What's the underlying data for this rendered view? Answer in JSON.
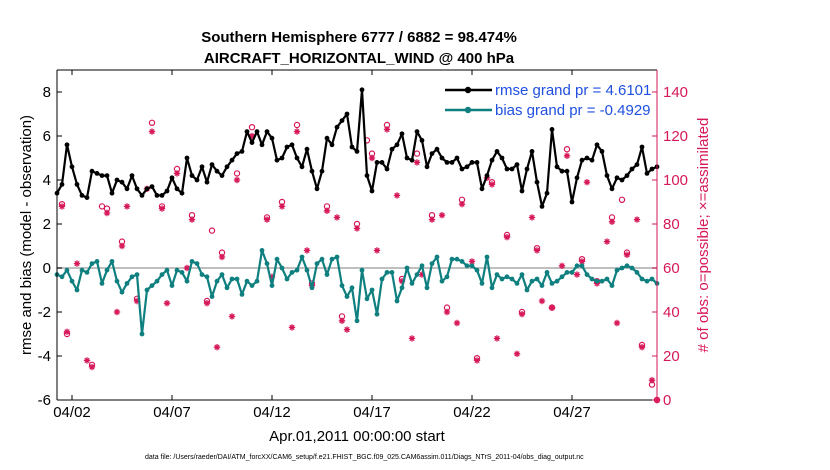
{
  "chart_data": {
    "type": "line",
    "title": "Southern Hemisphere 6777 / 6882 = 98.474%",
    "subtitle": "AIRCRAFT_HORIZONTAL_WIND @ 400 hPa",
    "xlabel": "Apr.01,2011 00:00:00 start",
    "ylabel_left": "rmse and bias (model - observation)",
    "ylabel_right": "# of obs: o=possible; ×=assimilated",
    "footer": "data file: /Users/raeder/DAI/ATM_forcXX/CAM6_setup/f.e21.FHIST_BGC.f09_025.CAM6assim.011/Diags_NTrS_2011-04/obs_diag_output.nc",
    "xlim": [
      0.75,
      30.75
    ],
    "ylim_left": [
      -6,
      9
    ],
    "ylim_right": [
      0,
      150
    ],
    "xticks": [
      1.5,
      6.5,
      11.5,
      16.5,
      21.5,
      26.5
    ],
    "xtick_labels": [
      "04/02",
      "04/07",
      "04/12",
      "04/17",
      "04/22",
      "04/27"
    ],
    "yticks_left": [
      -6,
      -4,
      -2,
      0,
      2,
      4,
      6,
      8
    ],
    "yticks_right": [
      0,
      20,
      40,
      60,
      80,
      100,
      120,
      140
    ],
    "colors": {
      "rmse": "#000000",
      "bias": "#0f7f7f",
      "obs": "#d6185a",
      "legend_text": "#1f4fe0",
      "zero_line": "#bfbfbf"
    },
    "legend": [
      {
        "name": "rmse grand pr = 4.6101"
      },
      {
        "name": "bias grand pr = -0.4929"
      }
    ],
    "series": [
      {
        "name": "rmse",
        "x": [
          0.75,
          1.0,
          1.25,
          1.5,
          1.75,
          2.0,
          2.25,
          2.5,
          2.75,
          3.0,
          3.25,
          3.5,
          3.75,
          4.0,
          4.25,
          4.5,
          4.75,
          5.0,
          5.25,
          5.5,
          5.75,
          6.0,
          6.25,
          6.5,
          6.75,
          7.0,
          7.25,
          7.5,
          7.75,
          8.0,
          8.25,
          8.5,
          8.75,
          9.0,
          9.25,
          9.5,
          9.75,
          10.0,
          10.25,
          10.5,
          10.75,
          11.0,
          11.25,
          11.5,
          11.75,
          12.0,
          12.25,
          12.5,
          12.75,
          13.0,
          13.25,
          13.5,
          13.75,
          14.0,
          14.25,
          14.5,
          14.75,
          15.0,
          15.25,
          15.5,
          15.75,
          16.0,
          16.25,
          16.5,
          16.75,
          17.0,
          17.25,
          17.5,
          17.75,
          18.0,
          18.25,
          18.5,
          18.75,
          19.0,
          19.25,
          19.5,
          19.75,
          20.0,
          20.25,
          20.5,
          20.75,
          21.0,
          21.25,
          21.5,
          21.75,
          22.0,
          22.25,
          22.5,
          22.75,
          23.0,
          23.25,
          23.5,
          23.75,
          24.0,
          24.25,
          24.5,
          24.75,
          25.0,
          25.25,
          25.5,
          25.75,
          26.0,
          26.25,
          26.5,
          26.75,
          27.0,
          27.25,
          27.5,
          27.75,
          28.0,
          28.25,
          28.5,
          28.75,
          29.0,
          29.25,
          29.5,
          29.75,
          30.0,
          30.25,
          30.5,
          30.75
        ],
        "values": [
          3.4,
          3.8,
          5.6,
          4.6,
          3.8,
          3.3,
          3.2,
          4.4,
          4.3,
          4.2,
          4.2,
          3.4,
          4.0,
          3.9,
          3.6,
          4.2,
          3.6,
          3.3,
          3.6,
          3.7,
          3.3,
          3.3,
          3.5,
          4.1,
          3.6,
          3.4,
          5.0,
          4.2,
          4.0,
          4.6,
          3.9,
          4.7,
          4.4,
          4.2,
          4.6,
          4.9,
          5.2,
          5.3,
          6.2,
          5.7,
          6.2,
          5.6,
          6.2,
          5.9,
          4.9,
          5.0,
          5.5,
          5.6,
          5.0,
          4.6,
          5.4,
          4.4,
          3.6,
          4.4,
          5.9,
          5.6,
          6.4,
          6.7,
          7.0,
          5.5,
          5.3,
          8.1,
          4.2,
          3.5,
          4.8,
          4.8,
          4.5,
          5.4,
          5.6,
          6.1,
          5.0,
          4.9,
          6.2,
          5.8,
          4.6,
          5.2,
          5.4,
          5.0,
          4.8,
          4.8,
          5.0,
          4.5,
          4.6,
          4.8,
          4.8,
          3.6,
          4.2,
          4.9,
          5.3,
          5.0,
          4.5,
          4.5,
          4.7,
          3.5,
          4.5,
          5.3,
          3.9,
          2.8,
          3.4,
          6.3,
          4.6,
          4.4,
          4.4,
          3.0,
          4.1,
          4.9,
          5.0,
          4.9,
          5.6,
          5.3,
          4.2,
          3.6,
          4.1,
          4.0,
          4.2,
          4.5,
          4.7,
          5.5,
          4.3,
          4.5,
          4.6
        ]
      },
      {
        "name": "bias",
        "x": [
          0.75,
          1.0,
          1.25,
          1.5,
          1.75,
          2.0,
          2.25,
          2.5,
          2.75,
          3.0,
          3.25,
          3.5,
          3.75,
          4.0,
          4.25,
          4.5,
          4.75,
          5.0,
          5.25,
          5.5,
          5.75,
          6.0,
          6.25,
          6.5,
          6.75,
          7.0,
          7.25,
          7.5,
          7.75,
          8.0,
          8.25,
          8.5,
          8.75,
          9.0,
          9.25,
          9.5,
          9.75,
          10.0,
          10.25,
          10.5,
          10.75,
          11.0,
          11.25,
          11.5,
          11.75,
          12.0,
          12.25,
          12.5,
          12.75,
          13.0,
          13.25,
          13.5,
          13.75,
          14.0,
          14.25,
          14.5,
          14.75,
          15.0,
          15.25,
          15.5,
          15.75,
          16.0,
          16.25,
          16.5,
          16.75,
          17.0,
          17.25,
          17.5,
          17.75,
          18.0,
          18.25,
          18.5,
          18.75,
          19.0,
          19.25,
          19.5,
          19.75,
          20.0,
          20.25,
          20.5,
          20.75,
          21.0,
          21.25,
          21.5,
          21.75,
          22.0,
          22.25,
          22.5,
          22.75,
          23.0,
          23.25,
          23.5,
          23.75,
          24.0,
          24.25,
          24.5,
          24.75,
          25.0,
          25.25,
          25.5,
          25.75,
          26.0,
          26.25,
          26.5,
          26.75,
          27.0,
          27.25,
          27.5,
          27.75,
          28.0,
          28.25,
          28.5,
          28.75,
          29.0,
          29.25,
          29.5,
          29.75,
          30.0,
          30.25,
          30.5,
          30.75
        ],
        "values": [
          -0.3,
          -0.4,
          -0.1,
          -0.6,
          -1.0,
          -0.1,
          -0.2,
          0.2,
          0.3,
          -0.7,
          -0.1,
          0.3,
          -0.6,
          -1.1,
          -0.7,
          -0.4,
          -0.3,
          -3.0,
          -1.0,
          -0.8,
          -0.6,
          -0.3,
          -0.1,
          -0.8,
          -0.1,
          -0.2,
          -0.6,
          0.3,
          0.2,
          -0.3,
          -0.4,
          -1.3,
          -0.6,
          -0.3,
          -0.9,
          -0.5,
          -0.5,
          -1.2,
          -0.6,
          -0.8,
          -0.6,
          0.8,
          0.2,
          -0.8,
          0.4,
          0.0,
          -0.5,
          -0.2,
          -0.1,
          0.5,
          -0.1,
          -0.9,
          0.2,
          0.4,
          -0.3,
          0.4,
          0.5,
          -0.8,
          -1.3,
          -0.9,
          -2.4,
          -0.1,
          -1.4,
          -1.0,
          -2.1,
          -0.5,
          -0.2,
          -0.2,
          -1.5,
          -0.9,
          0.0,
          -0.7,
          -0.3,
          0.1,
          -0.9,
          0.2,
          0.5,
          -0.6,
          -0.4,
          0.4,
          0.4,
          0.3,
          0.1,
          0.1,
          -0.1,
          -0.7,
          0.5,
          -0.9,
          -0.3,
          -0.5,
          -0.4,
          -0.5,
          -0.7,
          -0.3,
          -1.0,
          -0.6,
          -0.5,
          -0.8,
          -0.2,
          -0.7,
          -0.6,
          -0.4,
          -0.2,
          -0.2,
          0.1,
          0.1,
          -0.3,
          -0.5,
          -0.6,
          -0.6,
          -0.5,
          -0.8,
          -0.1,
          0.0,
          0.1,
          0.0,
          -0.2,
          -0.5,
          -0.6,
          -0.5,
          -0.7
        ]
      },
      {
        "name": "obs possible",
        "x": [
          1.0,
          1.25,
          2.5,
          3.25,
          4.0,
          4.75,
          5.5,
          6.0,
          6.75,
          7.5,
          8.25,
          9.0,
          9.75,
          10.5,
          11.25,
          12.0,
          12.75,
          13.5,
          14.25,
          15.0,
          15.75,
          16.5,
          17.25,
          18.0,
          18.75,
          19.5,
          20.25,
          21.0,
          21.75,
          22.5,
          23.25,
          24.0,
          24.75,
          25.5,
          26.25,
          27.0,
          27.75,
          28.5,
          29.25,
          30.0,
          30.5,
          30.75,
          3.0,
          8.5,
          16.25,
          29.0
        ],
        "values": [
          89,
          30,
          16,
          87,
          72,
          46,
          126,
          88,
          105,
          84,
          45,
          67,
          103,
          124,
          83,
          90,
          125,
          53,
          88,
          38,
          80,
          112,
          125,
          55,
          112,
          84,
          42,
          91,
          19,
          99,
          75,
          40,
          69,
          42,
          114,
          64,
          54,
          83,
          67,
          25,
          7,
          0,
          88,
          77,
          118,
          91
        ]
      },
      {
        "name": "obs assimilated",
        "x": [
          1.0,
          1.25,
          2.5,
          3.25,
          4.0,
          4.75,
          5.5,
          6.0,
          6.75,
          7.5,
          8.25,
          9.0,
          9.75,
          10.5,
          11.25,
          12.0,
          12.75,
          13.5,
          14.25,
          15.0,
          15.75,
          16.5,
          17.25,
          18.0,
          18.75,
          19.5,
          20.25,
          21.0,
          21.75,
          22.5,
          23.25,
          24.0,
          24.75,
          25.5,
          26.25,
          27.0,
          27.75,
          28.5,
          29.25,
          30.0,
          30.5,
          30.75,
          1.75,
          4.25,
          6.25,
          8.75,
          13.25,
          15.25,
          16.75,
          17.75,
          19.0,
          20.75,
          22.25,
          22.75,
          23.75,
          25.0,
          26.75,
          27.25,
          28.25,
          29.75,
          2.25,
          3.75,
          5.25,
          7.25,
          9.5,
          11.5,
          12.5,
          14.75,
          18.5,
          20.0,
          21.5,
          24.5,
          26.0,
          28.75
        ],
        "values": [
          88,
          31,
          15,
          85,
          70,
          45,
          122,
          87,
          103,
          82,
          44,
          65,
          100,
          120,
          82,
          88,
          122,
          52,
          86,
          36,
          78,
          110,
          123,
          54,
          108,
          82,
          40,
          89,
          18,
          98,
          74,
          39,
          68,
          42,
          111,
          63,
          53,
          81,
          66,
          24,
          9,
          0,
          62,
          88,
          44,
          24,
          68,
          32,
          68,
          93,
          57,
          35,
          101,
          28,
          21,
          45,
          57,
          99,
          72,
          82,
          18,
          40,
          96,
          60,
          38,
          56,
          33,
          83,
          28,
          84,
          63,
          83,
          61,
          35
        ]
      }
    ]
  }
}
